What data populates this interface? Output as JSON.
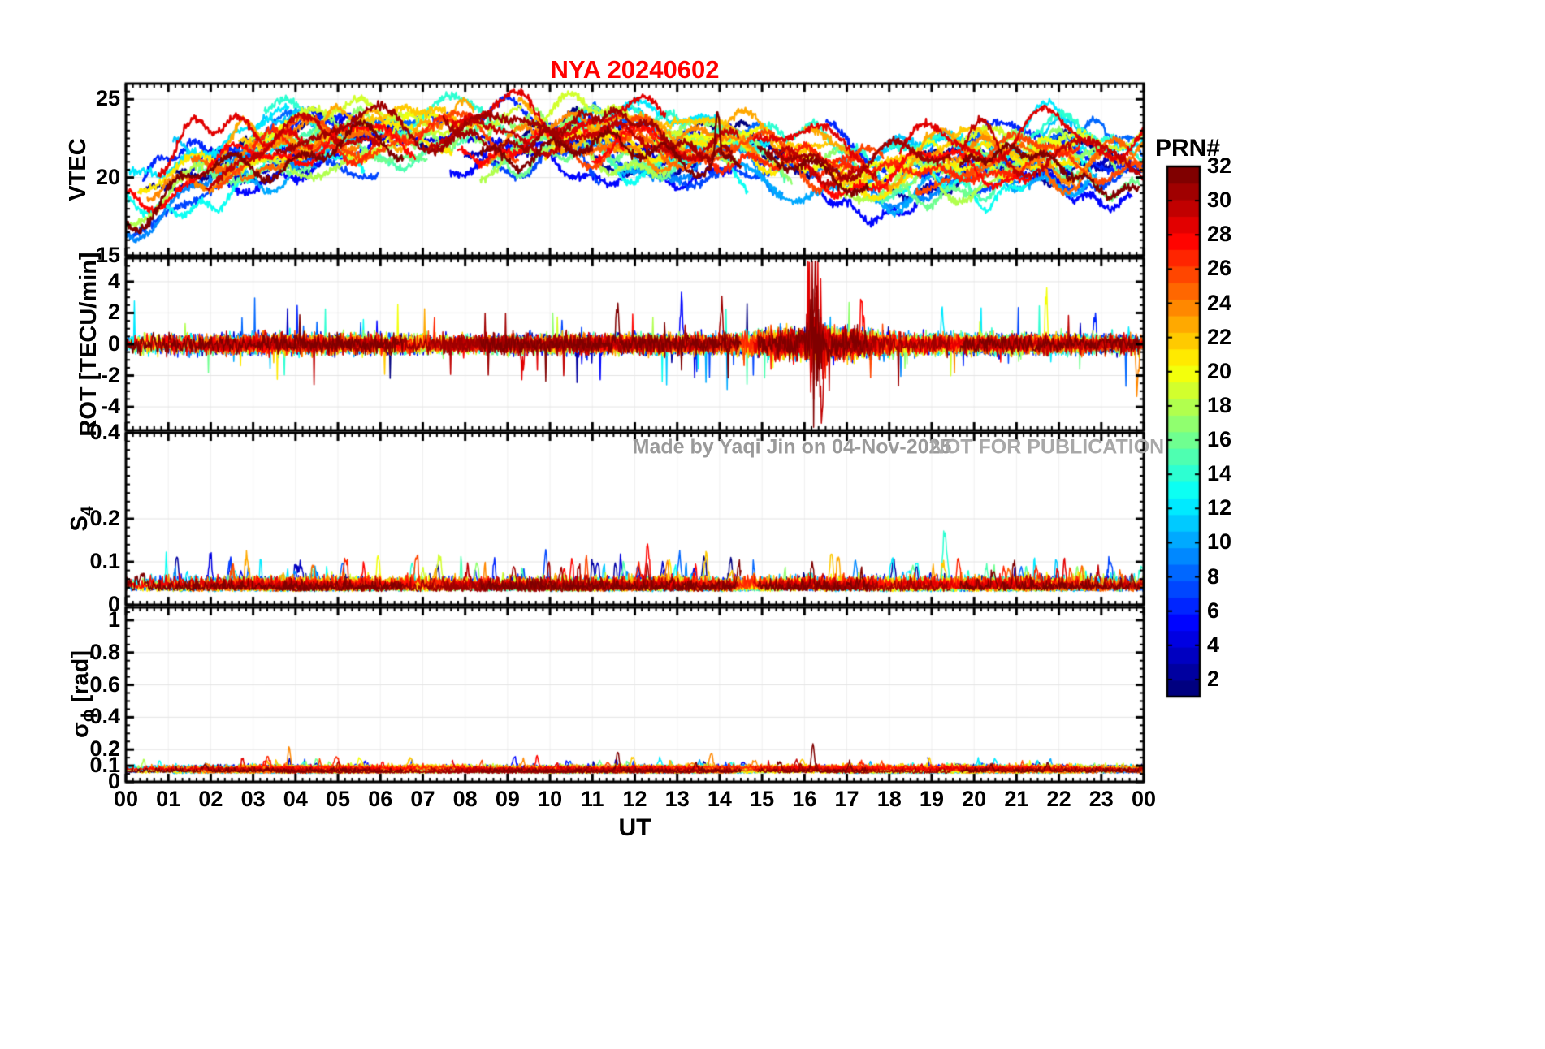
{
  "title": {
    "text": "NYA  20240602",
    "color": "#ff0000"
  },
  "watermark": {
    "credit": "Made by Yaqi Jin on 04-Nov-2025",
    "notice": "NOT FOR PUBLICATION"
  },
  "colorbar": {
    "title": "PRN#",
    "tick_values": [
      2,
      4,
      6,
      8,
      10,
      12,
      14,
      16,
      18,
      20,
      22,
      24,
      26,
      28,
      30,
      32
    ],
    "prn_min": 1,
    "prn_max": 32,
    "colormap": "jet"
  },
  "chart_data": {
    "type": "line",
    "station": "NYA",
    "date": "20240602",
    "seed": 602,
    "samples_per_hour": 60,
    "arcs_per_prn": 3,
    "x": {
      "label": "UT",
      "range": [
        0,
        24
      ],
      "tick_labels": [
        "00",
        "01",
        "02",
        "03",
        "04",
        "05",
        "06",
        "07",
        "08",
        "09",
        "10",
        "11",
        "12",
        "13",
        "14",
        "15",
        "16",
        "17",
        "18",
        "19",
        "20",
        "21",
        "22",
        "23",
        "00"
      ]
    },
    "panels": [
      {
        "id": "vtec",
        "ylabel_main": "VTEC",
        "ylabel_sub": "",
        "ylabel_rest": "",
        "ylim": [
          15,
          26
        ],
        "yticks": [
          15,
          20,
          25
        ],
        "model": {
          "offset_spread": 1.6,
          "wander_amp": 1.0,
          "noise": 0.13,
          "linewidth": 2.4,
          "anchors": [
            [
              0,
              18.6
            ],
            [
              2,
              20.6
            ],
            [
              4,
              22.1
            ],
            [
              6,
              22.6
            ],
            [
              8,
              22.4
            ],
            [
              10,
              22.4
            ],
            [
              12,
              22.1
            ],
            [
              14,
              21.9
            ],
            [
              16,
              20.9
            ],
            [
              18,
              20.1
            ],
            [
              20,
              20.7
            ],
            [
              22,
              21.4
            ],
            [
              24,
              20.8
            ]
          ]
        },
        "specials": [
          {
            "prn": 32,
            "t": 13.95,
            "amp": 3.2,
            "w": 0.07
          },
          {
            "prn": 30,
            "t": 20.2,
            "amp": 1.6,
            "w": 0.35
          }
        ]
      },
      {
        "id": "rot",
        "ylabel_main": "ROT [TECU/min]",
        "ylabel_sub": "",
        "ylabel_rest": "",
        "ylim": [
          -5.5,
          5.5
        ],
        "yticks": [
          -4,
          -2,
          0,
          2,
          4
        ],
        "model": {
          "noise": 0.3,
          "burst_center": 16.3,
          "burst_width": 1.5,
          "burst_gain": 0.8,
          "redstorm_center": 16.25,
          "redstorm_width": 0.18,
          "redstorm_amp": 3.0,
          "redstorm_prn_min": 29,
          "spike_prob": 0.0035,
          "spike_amp": 1.6,
          "linewidth": 1.5,
          "clip": 5.3
        },
        "specials": [
          {
            "prn": 31,
            "t": 16.22,
            "amp": 4.3,
            "w": 0.05
          },
          {
            "prn": 30,
            "t": 16.4,
            "amp": -4.1,
            "w": 0.05
          },
          {
            "prn": 29,
            "t": 16.1,
            "amp": 3.2,
            "w": 0.04
          },
          {
            "prn": 32,
            "t": 11.58,
            "amp": 3.1,
            "w": 0.04
          },
          {
            "prn": 28,
            "t": 17.35,
            "amp": 2.6,
            "w": 0.05
          },
          {
            "prn": 12,
            "t": 19.25,
            "amp": 2.3,
            "w": 0.04
          },
          {
            "prn": 5,
            "t": 13.1,
            "amp": 2.8,
            "w": 0.04
          },
          {
            "prn": 20,
            "t": 21.7,
            "amp": 2.7,
            "w": 0.04
          },
          {
            "prn": 6,
            "t": 22.85,
            "amp": 2.2,
            "w": 0.04
          },
          {
            "prn": 24,
            "t": 23.85,
            "amp": -2.6,
            "w": 0.05
          },
          {
            "prn": 31,
            "t": 14.05,
            "amp": 2.4,
            "w": 0.05
          },
          {
            "prn": 29,
            "t": 9.35,
            "amp": -2.0,
            "w": 0.05
          }
        ]
      },
      {
        "id": "s4",
        "ylabel_main": "S",
        "ylabel_sub": "4",
        "ylabel_rest": "",
        "ylim": [
          0,
          0.4
        ],
        "yticks": [
          0,
          0.1,
          0.2,
          0.4
        ],
        "model": {
          "base": 0.03,
          "base_spread": 0.012,
          "noise": 0.012,
          "events_max": 3,
          "event_amp": 0.05,
          "linewidth": 1.5
        },
        "specials": [
          {
            "prn": 7,
            "t": 9.9,
            "amp": 0.09,
            "w": 0.05
          },
          {
            "prn": 8,
            "t": 13.05,
            "amp": 0.08,
            "w": 0.05
          },
          {
            "prn": 26,
            "t": 6.85,
            "amp": 0.07,
            "w": 0.06
          },
          {
            "prn": 2,
            "t": 1.2,
            "amp": 0.075,
            "w": 0.05
          },
          {
            "prn": 14,
            "t": 19.3,
            "amp": 0.07,
            "w": 0.05
          },
          {
            "prn": 28,
            "t": 12.3,
            "amp": 0.06,
            "w": 0.05
          }
        ]
      },
      {
        "id": "sigma_phi",
        "ylabel_main": "σ",
        "ylabel_sub": "ϕ",
        "ylabel_rest": " [rad]",
        "ylim": [
          0,
          1.08
        ],
        "yticks": [
          0,
          0.1,
          0.2,
          0.4,
          0.6,
          0.8,
          1
        ],
        "model": {
          "base": 0.05,
          "base_spread": 0.035,
          "noise": 0.012,
          "events_max": 2,
          "event_amp": 0.05,
          "linewidth": 1.5
        },
        "specials": [
          {
            "prn": 32,
            "t": 16.2,
            "amp": 0.17,
            "w": 0.05
          },
          {
            "prn": 32,
            "t": 11.6,
            "amp": 0.12,
            "w": 0.05
          },
          {
            "prn": 24,
            "t": 3.85,
            "amp": 0.13,
            "w": 0.04
          },
          {
            "prn": 24,
            "t": 13.8,
            "amp": 0.09,
            "w": 0.05
          },
          {
            "prn": 28,
            "t": 9.7,
            "amp": 0.07,
            "w": 0.05
          }
        ]
      }
    ]
  }
}
